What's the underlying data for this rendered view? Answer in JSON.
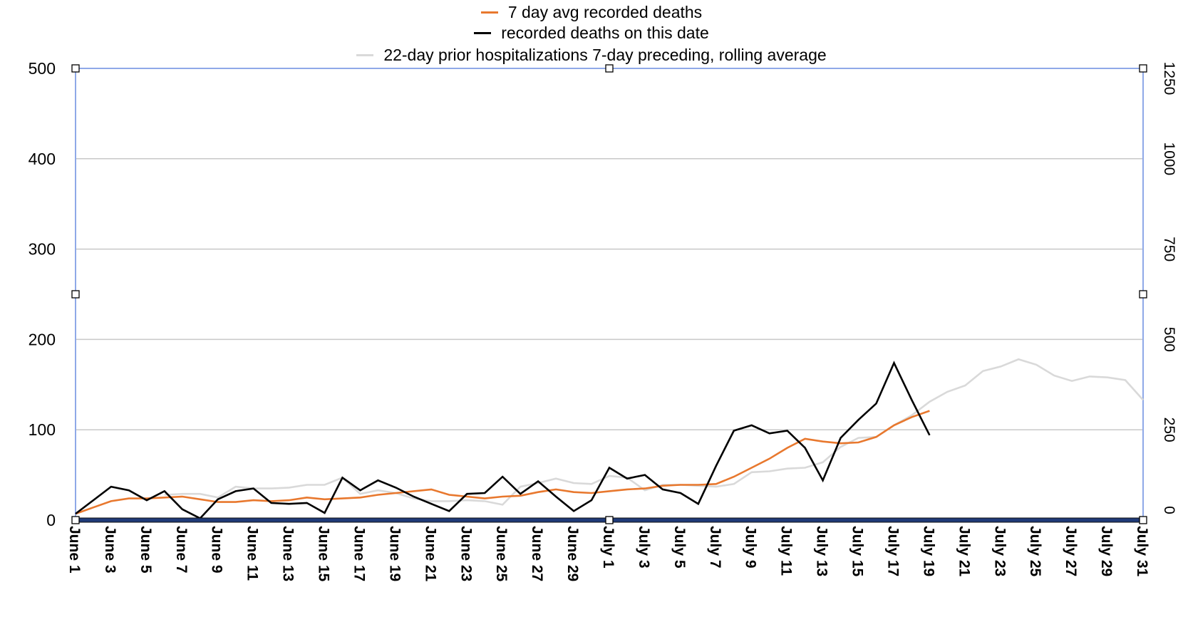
{
  "chart_data": {
    "type": "line",
    "title": "",
    "xlabel": "",
    "ylabel": "",
    "ylim": [
      0,
      500
    ],
    "y_ticks": [
      "0",
      "100",
      "200",
      "300",
      "400",
      "500"
    ],
    "y2lim": [
      0,
      1250
    ],
    "y2_ticks": [
      "0",
      "250",
      "500",
      "750",
      "1000",
      "1250"
    ],
    "grid": true,
    "legend_position": "top-center",
    "categories": [
      "June 1",
      "June 2",
      "June 3",
      "June 4",
      "June 5",
      "June 6",
      "June 7",
      "June 8",
      "June 9",
      "June 10",
      "June 11",
      "June 12",
      "June 13",
      "June 14",
      "June 15",
      "June 16",
      "June 17",
      "June 18",
      "June 19",
      "June 20",
      "June 21",
      "June 22",
      "June 23",
      "June 24",
      "June 25",
      "June 26",
      "June 27",
      "June 28",
      "June 29",
      "June 30",
      "July 1",
      "July 2",
      "July 3",
      "July 4",
      "July 5",
      "July 6",
      "July 7",
      "July 8",
      "July 9",
      "July 10",
      "July 11",
      "July 12",
      "July 13",
      "July 14",
      "July 15",
      "July 16",
      "July 17",
      "July 18",
      "July 19",
      "July 20",
      "July 21",
      "July 22",
      "July 23",
      "July 24",
      "July 25",
      "July 26",
      "July 27",
      "July 28",
      "July 29",
      "July 30",
      "July 31"
    ],
    "x_tick_labels": [
      "June 1",
      "June 3",
      "June 5",
      "June 7",
      "June 9",
      "June 11",
      "June 13",
      "June 15",
      "June 17",
      "June 19",
      "June 21",
      "June 23",
      "June 25",
      "June 27",
      "June 29",
      "July 1",
      "July 3",
      "July 5",
      "July 7",
      "July 9",
      "July 11",
      "July 13",
      "July 15",
      "July 17",
      "July 19",
      "July 21",
      "July 23",
      "July 25",
      "July 27",
      "July 29",
      "July 31"
    ],
    "series": [
      {
        "name": "7 day avg recorded deaths",
        "color": "#e8782e",
        "values": [
          7,
          14,
          21,
          24,
          24,
          25,
          26,
          23,
          20,
          20,
          22,
          21,
          22,
          25,
          23,
          24,
          25,
          28,
          30,
          32,
          34,
          28,
          26,
          24,
          26,
          27,
          31,
          34,
          31,
          30,
          32,
          34,
          35,
          38,
          39,
          39,
          40,
          48,
          58,
          68,
          80,
          90,
          87,
          85,
          86,
          92,
          105,
          114,
          121,
          null,
          null,
          null,
          null,
          null,
          null,
          null,
          null,
          null,
          null,
          null,
          null
        ]
      },
      {
        "name": "recorded deaths on this date",
        "color": "#000000",
        "values": [
          7,
          22,
          37,
          33,
          22,
          32,
          12,
          2,
          23,
          32,
          35,
          19,
          18,
          19,
          8,
          47,
          33,
          44,
          36,
          26,
          18,
          10,
          29,
          30,
          48,
          29,
          43,
          26,
          10,
          22,
          58,
          46,
          50,
          34,
          30,
          18,
          60,
          99,
          105,
          96,
          99,
          80,
          44,
          91,
          111,
          129,
          174,
          133,
          94,
          null,
          null,
          null,
          null,
          null,
          null,
          null,
          null,
          null,
          null,
          null,
          null
        ]
      },
      {
        "name": "22-day prior hospitalizations 7-day preceding, rolling average",
        "color": "#d9d9d9",
        "values": [
          null,
          null,
          null,
          null,
          null,
          28,
          29,
          29,
          25,
          37,
          35,
          35,
          36,
          39,
          39,
          47,
          29,
          33,
          30,
          24,
          21,
          21,
          22,
          21,
          17,
          37,
          41,
          46,
          41,
          40,
          49,
          47,
          33,
          39,
          39,
          38,
          37,
          40,
          53,
          54,
          57,
          58,
          64,
          81,
          91,
          92,
          105,
          116,
          131,
          142,
          149,
          165,
          170,
          178,
          172,
          160,
          154,
          159,
          158,
          155,
          133
        ]
      }
    ]
  }
}
